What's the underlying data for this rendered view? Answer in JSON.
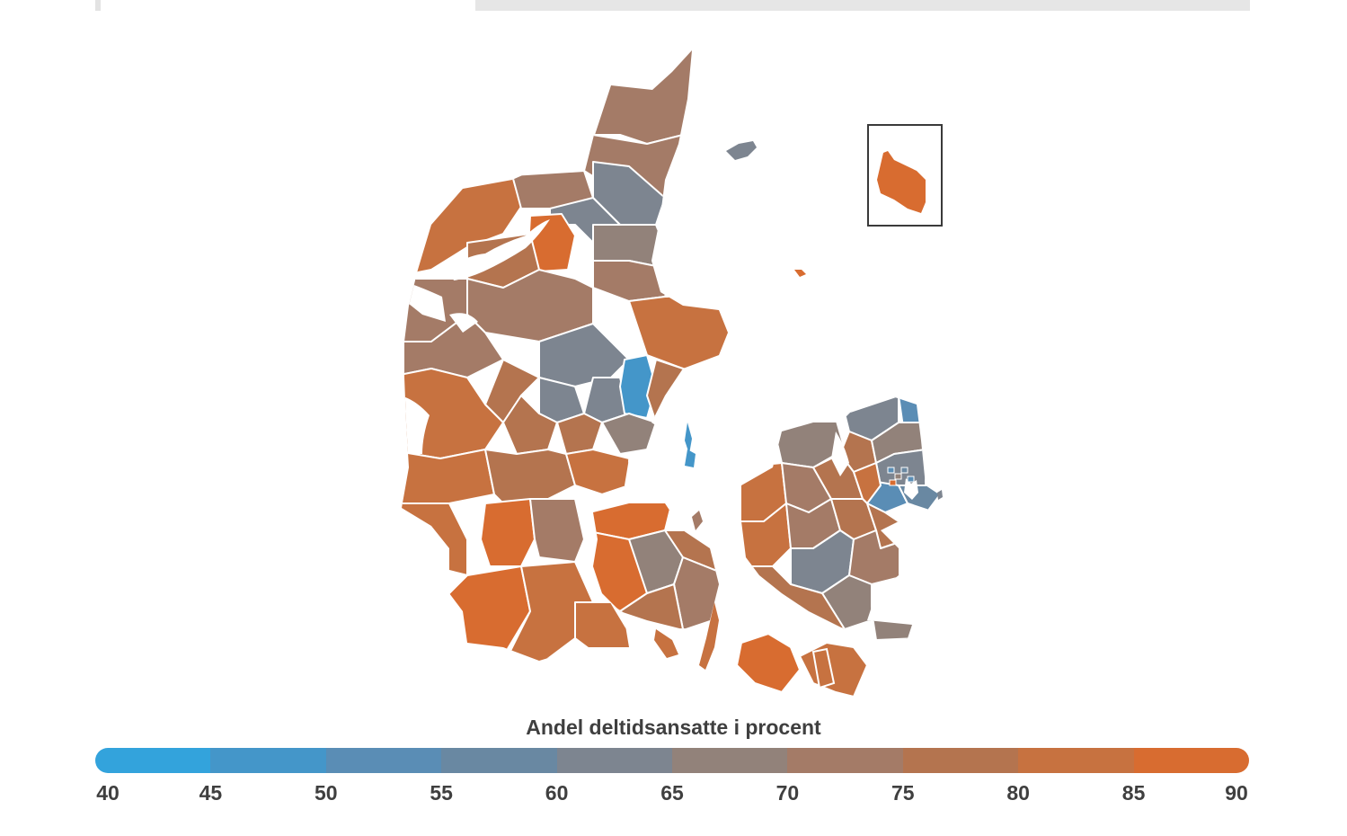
{
  "map": {
    "legend_title": "Andel deltidsansatte i procent",
    "scale_ticks": [
      "40",
      "45",
      "50",
      "55",
      "60",
      "65",
      "70",
      "75",
      "80",
      "85",
      "90"
    ],
    "scale_colors": [
      "#33a3dc",
      "#4496c9",
      "#5a8db5",
      "#6988a2",
      "#7d8590",
      "#92827a",
      "#a47b67",
      "#b4744f",
      "#c77240",
      "#d86c30"
    ],
    "border_color": "#ffffff",
    "inset_frame_color": "#3a3a3a"
  }
}
